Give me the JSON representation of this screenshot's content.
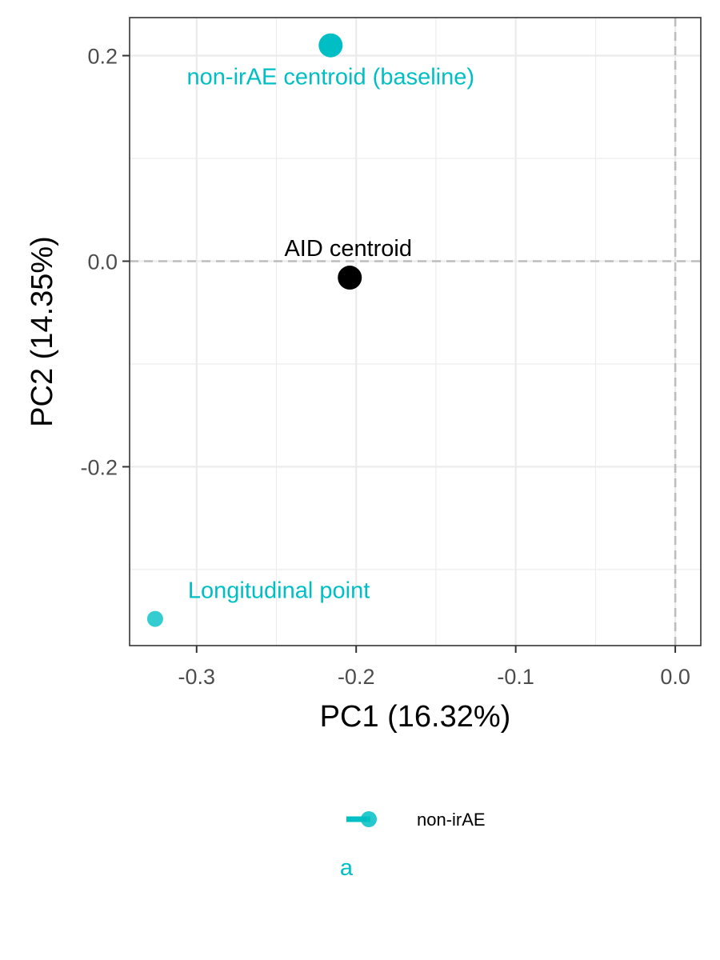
{
  "chart_data": {
    "type": "scatter",
    "xlabel": "PC1 (16.32%)",
    "ylabel": "PC2 (14.35%)",
    "xlim": [
      -0.342,
      0.016
    ],
    "ylim": [
      -0.374,
      0.237
    ],
    "x_ticks": [
      -0.3,
      -0.2,
      -0.1,
      0.0
    ],
    "x_tick_labels": [
      "-0.3",
      "-0.2",
      "-0.1",
      "0.0"
    ],
    "y_ticks": [
      -0.2,
      0.0,
      0.2
    ],
    "y_tick_labels": [
      "-0.2",
      "0.0",
      "0.2"
    ],
    "grid": true,
    "reference_lines": {
      "horizontal": 0.0,
      "vertical": 0.0,
      "style": "dashed"
    },
    "points": [
      {
        "label": "non-irAE centroid (baseline)",
        "x": -0.216,
        "y": 0.21,
        "color": "#00BFC4",
        "size": "large",
        "label_position": "below"
      },
      {
        "label": "AID centroid",
        "x": -0.204,
        "y": -0.016,
        "color": "#000000",
        "size": "large",
        "label_position": "above"
      },
      {
        "label": "Longitudinal point",
        "x": -0.326,
        "y": -0.348,
        "color": "#00BFC4",
        "size": "small",
        "label_position": "above-right"
      }
    ],
    "legend": {
      "placement": "bottom",
      "entries": [
        {
          "name": "non-irAE",
          "color": "#00BFC4"
        }
      ],
      "sublabel": "a",
      "sublabel_color": "#00BFC4"
    },
    "colors": {
      "accent": "#00BFC4",
      "centroid": "#000000",
      "grid": "#ebebeb",
      "reference": "#bdbdbd",
      "panel_border": "#333333",
      "tick_text": "#4d4d4d"
    }
  }
}
